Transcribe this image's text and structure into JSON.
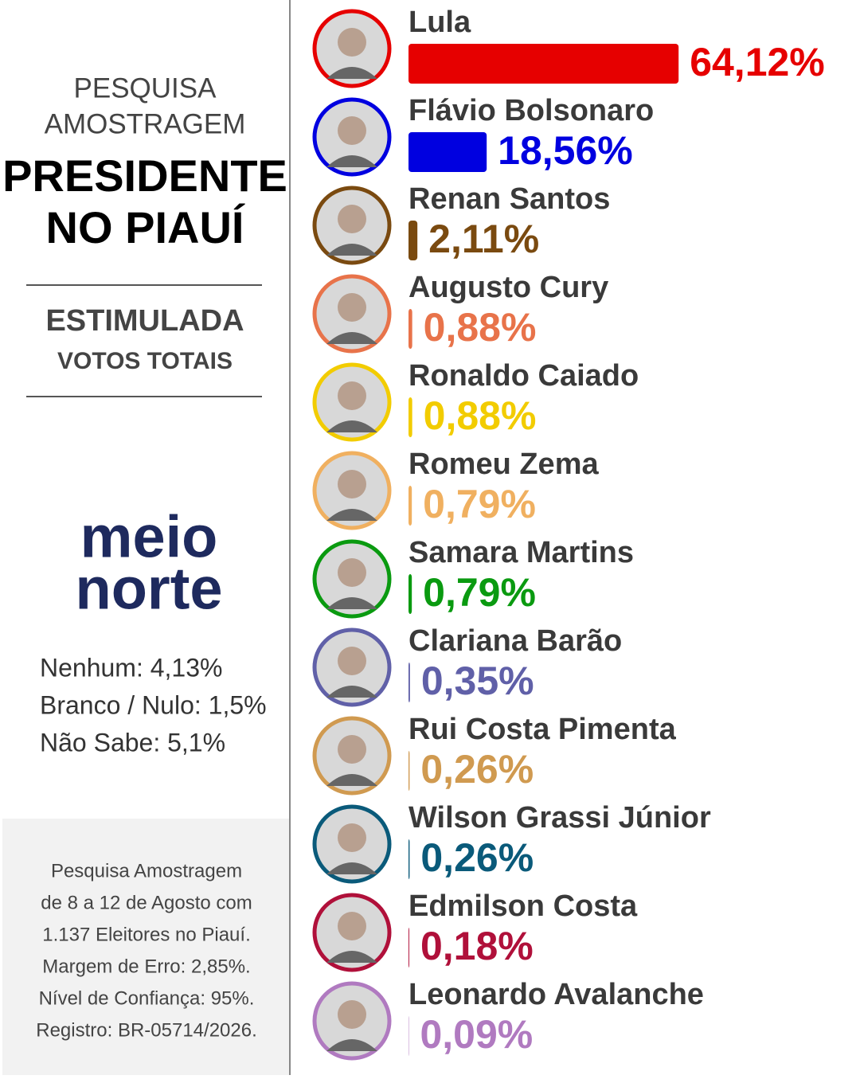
{
  "sidebar": {
    "kicker": [
      "PESQUISA",
      "AMOSTRAGEM"
    ],
    "title": [
      "PRESIDENTE",
      "NO PIAUÍ"
    ],
    "mode": "ESTIMULADA",
    "mode_sub": "VOTOS TOTAIS",
    "logo": [
      "meio",
      "norte"
    ],
    "others": [
      "Nenhum: 4,13%",
      "Branco / Nulo: 1,5%",
      "Não Sabe: 5,1%"
    ],
    "footnote": [
      "Pesquisa Amostragem",
      "de 8 a 12 de Agosto com",
      "1.137 Eleitores no Piauí.",
      "Margem de Erro: 2,85%.",
      "Nível de Confiança: 95%.",
      "Registro: BR-05714/2026."
    ]
  },
  "chart_data": {
    "type": "bar",
    "categories": [
      "Lula",
      "Flávio Bolsonaro",
      "Renan Santos",
      "Augusto Cury",
      "Ronaldo Caiado",
      "Romeu Zema",
      "Samara Martins",
      "Clariana Barão",
      "Rui Costa Pimenta",
      "Wilson Grassi Júnior",
      "Edmilson Costa",
      "Leonardo Avalanche"
    ],
    "values": [
      64.12,
      18.56,
      2.11,
      0.88,
      0.88,
      0.79,
      0.79,
      0.35,
      0.26,
      0.26,
      0.18,
      0.09
    ],
    "value_labels": [
      "64,12%",
      "18,56%",
      "2,11%",
      "0,88%",
      "0,88%",
      "0,79%",
      "0,79%",
      "0,35%",
      "0,26%",
      "0,26%",
      "0,18%",
      "0,09%"
    ],
    "colors": [
      "#e60000",
      "#0000e0",
      "#7a4a10",
      "#e8734a",
      "#f2cc00",
      "#f0b060",
      "#0a9a10",
      "#6060a8",
      "#d09a50",
      "#0a5a7a",
      "#b0103a",
      "#b07ac0"
    ]
  }
}
